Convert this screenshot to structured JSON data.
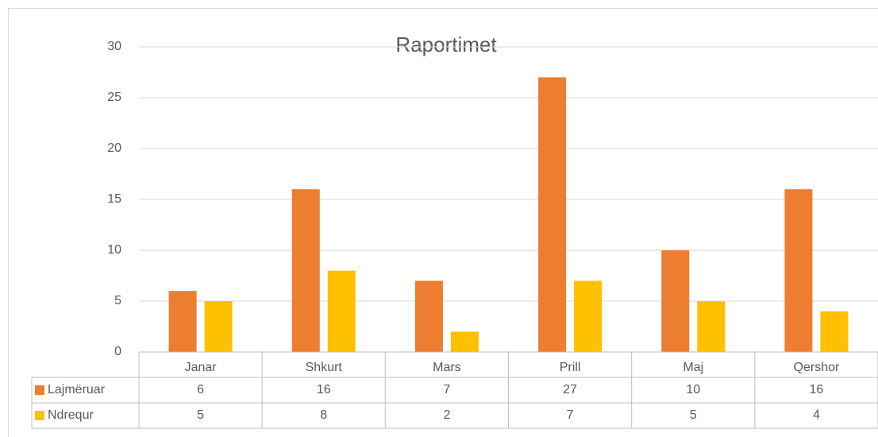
{
  "chart_data": {
    "type": "bar",
    "title": "Raportimet",
    "categories": [
      "Janar",
      "Shkurt",
      "Mars",
      "Prill",
      "Maj",
      "Qershor"
    ],
    "series": [
      {
        "name": "Lajmëruar",
        "color": "#ed7d31",
        "values": [
          6,
          16,
          7,
          27,
          10,
          16
        ]
      },
      {
        "name": "Ndrequr",
        "color": "#ffc000",
        "values": [
          5,
          8,
          2,
          7,
          5,
          4
        ]
      }
    ],
    "ylim": [
      0,
      30
    ],
    "yticks": [
      0,
      5,
      10,
      15,
      20,
      25,
      30
    ],
    "grid": true,
    "data_table": true
  }
}
